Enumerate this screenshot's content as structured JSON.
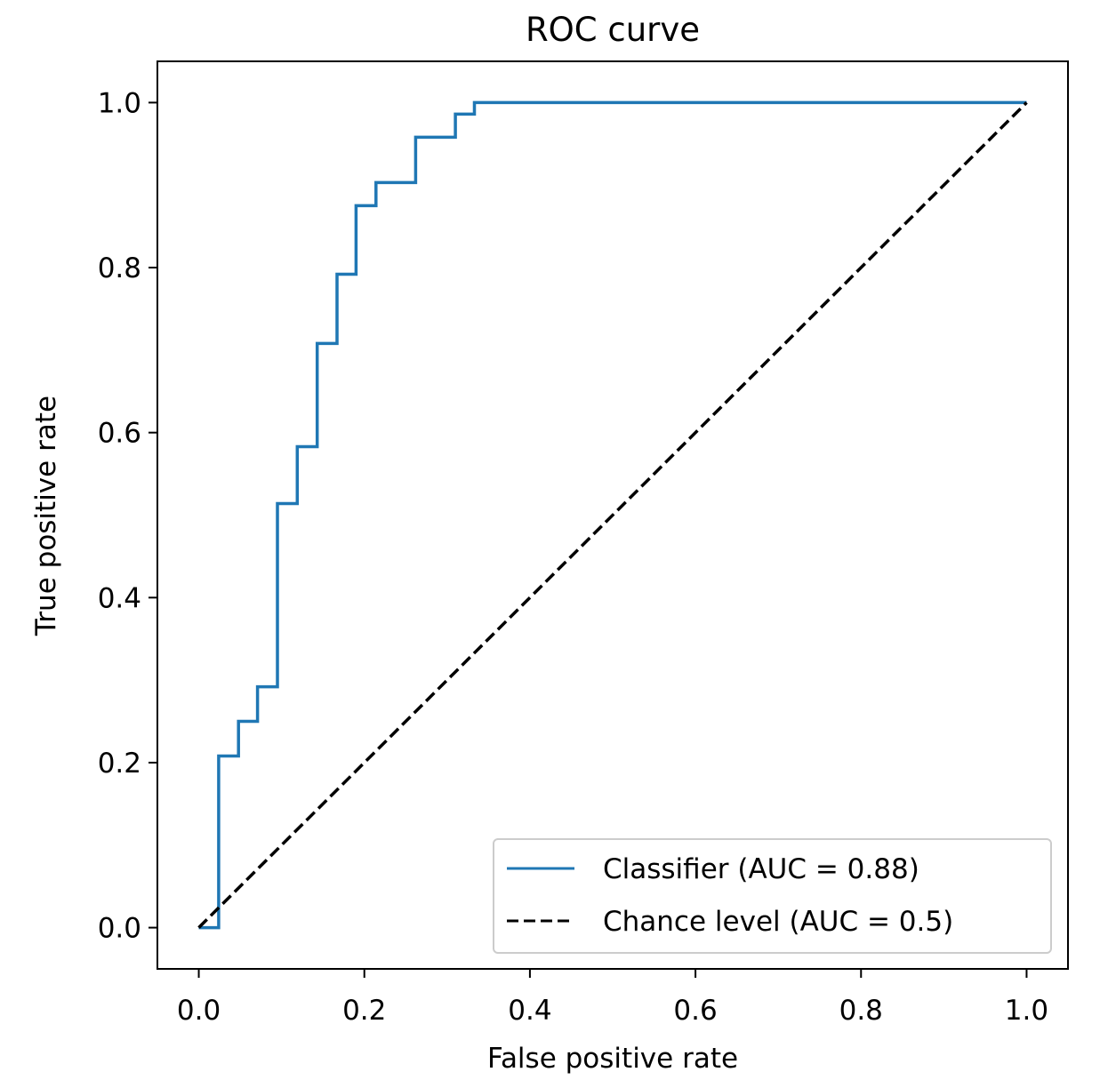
{
  "chart_data": {
    "type": "line",
    "title": "ROC curve",
    "xlabel": "False positive rate",
    "ylabel": "True positive rate",
    "xlim": [
      -0.05,
      1.05
    ],
    "ylim": [
      -0.05,
      1.05
    ],
    "xticks": [
      0.0,
      0.2,
      0.4,
      0.6,
      0.8,
      1.0
    ],
    "xtick_labels": [
      "0.0",
      "0.2",
      "0.4",
      "0.6",
      "0.8",
      "1.0"
    ],
    "yticks": [
      0.0,
      0.2,
      0.4,
      0.6,
      0.8,
      1.0
    ],
    "ytick_labels": [
      "0.0",
      "0.2",
      "0.4",
      "0.6",
      "0.8",
      "1.0"
    ],
    "grid": false,
    "legend_location": "lower-right",
    "series": [
      {
        "name": "Classifier (AUC = 0.88)",
        "color": "#1f77b4",
        "style": "solid",
        "x": [
          0.0,
          0.024,
          0.024,
          0.048,
          0.048,
          0.071,
          0.071,
          0.095,
          0.095,
          0.119,
          0.119,
          0.143,
          0.143,
          0.167,
          0.167,
          0.19,
          0.19,
          0.214,
          0.214,
          0.262,
          0.262,
          0.31,
          0.31,
          0.333,
          0.333,
          1.0
        ],
        "y": [
          0.0,
          0.0,
          0.208,
          0.208,
          0.25,
          0.25,
          0.292,
          0.292,
          0.514,
          0.514,
          0.583,
          0.583,
          0.708,
          0.708,
          0.792,
          0.792,
          0.875,
          0.875,
          0.903,
          0.903,
          0.958,
          0.958,
          0.986,
          0.986,
          1.0,
          1.0
        ]
      },
      {
        "name": "Chance level (AUC = 0.5)",
        "color": "#000000",
        "style": "dashed",
        "x": [
          0.0,
          1.0
        ],
        "y": [
          0.0,
          1.0
        ]
      }
    ]
  }
}
